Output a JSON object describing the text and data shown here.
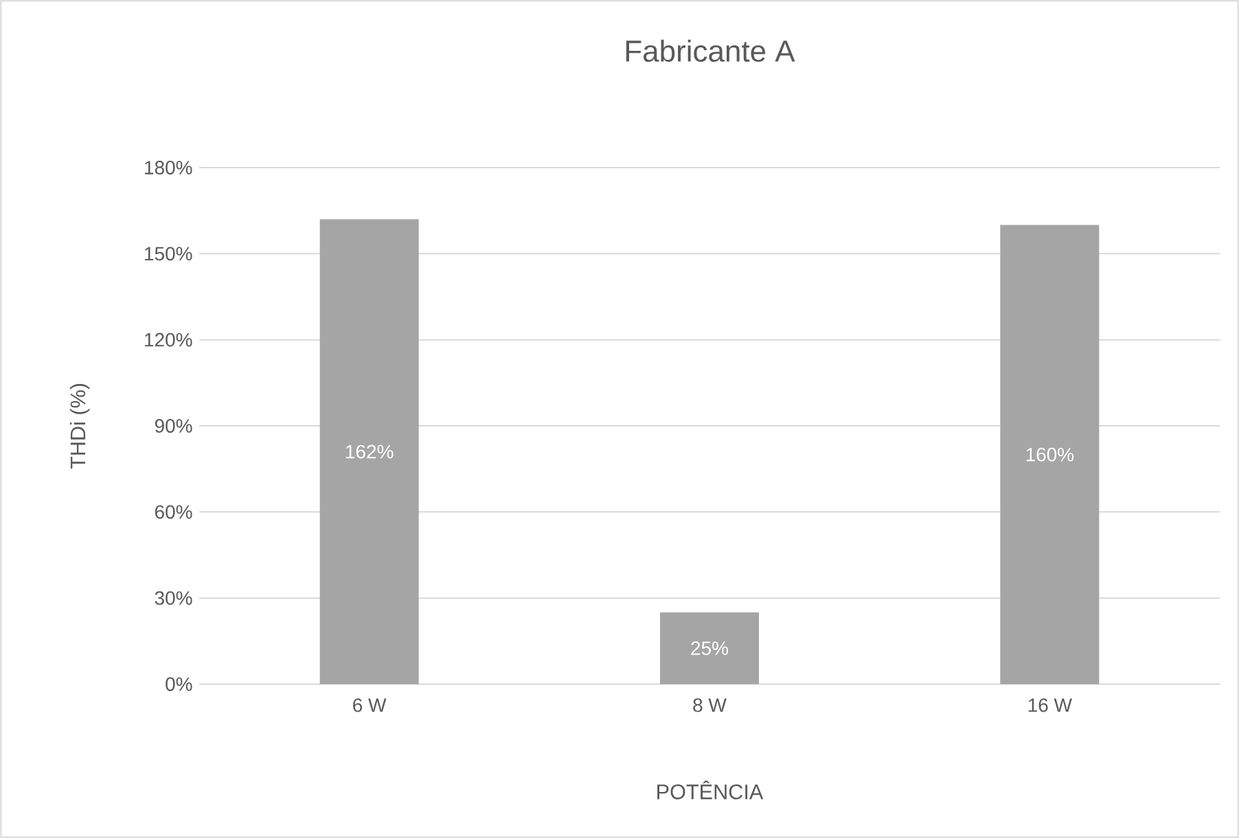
{
  "chart_data": {
    "type": "bar",
    "title": "Fabricante A",
    "xlabel": "POTÊNCIA",
    "ylabel": "THDi (%)",
    "categories": [
      "6 W",
      "8 W",
      "16 W"
    ],
    "values": [
      162,
      25,
      160
    ],
    "value_labels": [
      "162%",
      "25%",
      "160%"
    ],
    "color": "#a5a5a5",
    "ylim": [
      0,
      180
    ],
    "yticks": [
      {
        "value": 0,
        "label": "0%"
      },
      {
        "value": 30,
        "label": "30%"
      },
      {
        "value": 60,
        "label": "60%"
      },
      {
        "value": 90,
        "label": "90%"
      },
      {
        "value": 120,
        "label": "120%"
      },
      {
        "value": 150,
        "label": "150%"
      },
      {
        "value": 180,
        "label": "180%"
      }
    ],
    "grid": "y"
  }
}
